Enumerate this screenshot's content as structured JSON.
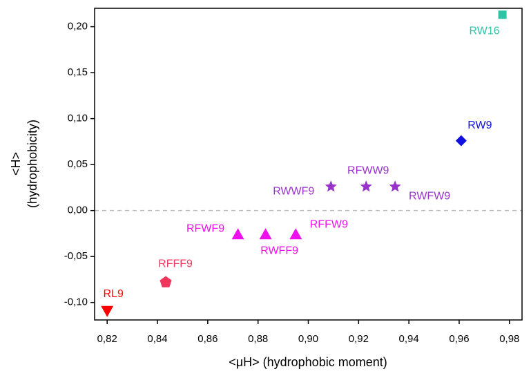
{
  "chart_data": {
    "type": "scatter",
    "xlabel": "<μH> (hydrophobic moment)",
    "ylabel": [
      "<H>",
      "(hydrophobicity)"
    ],
    "xlim": [
      0.815,
      0.985
    ],
    "ylim": [
      -0.119,
      0.22
    ],
    "xticks": [
      {
        "value": 0.82,
        "label": "0,82"
      },
      {
        "value": 0.84,
        "label": "0,84"
      },
      {
        "value": 0.86,
        "label": "0,86"
      },
      {
        "value": 0.88,
        "label": "0,88"
      },
      {
        "value": 0.9,
        "label": "0,90"
      },
      {
        "value": 0.92,
        "label": "0,92"
      },
      {
        "value": 0.94,
        "label": "0,94"
      },
      {
        "value": 0.96,
        "label": "0,96"
      },
      {
        "value": 0.98,
        "label": "0,98"
      }
    ],
    "yticks": [
      {
        "value": -0.1,
        "label": "-0,10"
      },
      {
        "value": -0.05,
        "label": "-0,05"
      },
      {
        "value": 0,
        "label": "0,00"
      },
      {
        "value": 0.05,
        "label": "0,05"
      },
      {
        "value": 0.1,
        "label": "0,10"
      },
      {
        "value": 0.15,
        "label": "0,15"
      },
      {
        "value": 0.2,
        "label": "0,20"
      }
    ],
    "hline": 0,
    "series": [
      {
        "name": "RL9",
        "color": "#ff0000",
        "marker": "triangle-down",
        "x": [
          0.82
        ],
        "values": [
          -0.109
        ]
      },
      {
        "name": "RFFF9",
        "color": "#f0385e",
        "marker": "pentagon",
        "x": [
          0.8433
        ],
        "values": [
          -0.078
        ]
      },
      {
        "name": "RFWF9",
        "color": "#ee11ee",
        "marker": "triangle",
        "x": [
          0.872
        ],
        "values": [
          -0.026
        ]
      },
      {
        "name": "RWFF9",
        "color": "#ee11ee",
        "marker": "triangle",
        "x": [
          0.883
        ],
        "values": [
          -0.026
        ]
      },
      {
        "name": "RFFW9",
        "color": "#ee11ee",
        "marker": "triangle",
        "x": [
          0.895
        ],
        "values": [
          -0.026
        ]
      },
      {
        "name": "RWWF9",
        "color": "#9932cc",
        "marker": "star",
        "x": [
          0.909
        ],
        "values": [
          0.026
        ]
      },
      {
        "name": "RFWW9",
        "color": "#9932cc",
        "marker": "star",
        "x": [
          0.923
        ],
        "values": [
          0.026
        ]
      },
      {
        "name": "RWFW9",
        "color": "#9932cc",
        "marker": "star",
        "x": [
          0.9345
        ],
        "values": [
          0.026
        ]
      },
      {
        "name": "RW9",
        "color": "#1010e0",
        "marker": "diamond",
        "x": [
          0.9608
        ],
        "values": [
          0.076
        ]
      },
      {
        "name": "RW16",
        "color": "#2ec4a6",
        "marker": "square",
        "x": [
          0.9772
        ],
        "values": [
          0.213
        ]
      }
    ]
  }
}
